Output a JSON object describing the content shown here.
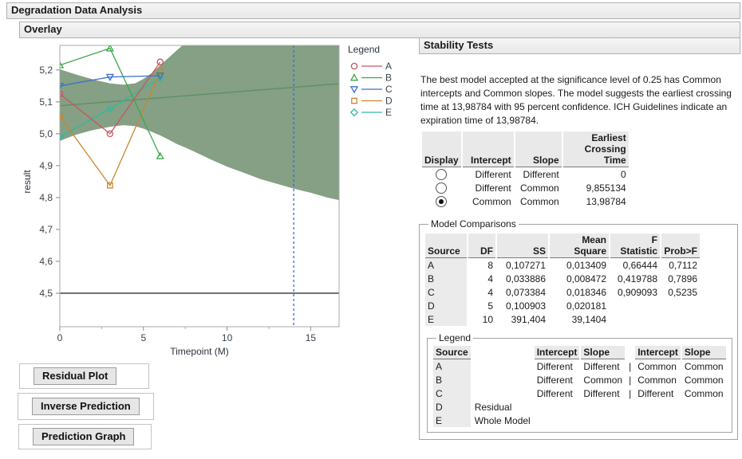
{
  "window": {
    "title": "Degradation Data Analysis",
    "section": "Overlay"
  },
  "buttons": [
    {
      "label": "Residual Plot"
    },
    {
      "label": "Inverse Prediction"
    },
    {
      "label": "Prediction Graph"
    }
  ],
  "stability": {
    "title": "Stability Tests",
    "description": "The best model accepted at the significance level of 0.25 has Common intercepts and Common slopes. The model suggests the earliest crossing time at 13,98784 with 95 percent confidence. ICH Guidelines indicate an expiration time of 13,98784.",
    "display_table": {
      "headers": [
        "Display",
        "Intercept",
        "Slope",
        "Earliest\nCrossing Time"
      ],
      "rows": [
        {
          "selected": false,
          "intercept": "Different",
          "slope": "Different",
          "earliest_crossing_time": "0"
        },
        {
          "selected": false,
          "intercept": "Different",
          "slope": "Common",
          "earliest_crossing_time": "9,855134"
        },
        {
          "selected": true,
          "intercept": "Common",
          "slope": "Common",
          "earliest_crossing_time": "13,98784"
        }
      ]
    },
    "model_comparisons": {
      "title": "Model Comparisons",
      "headers": [
        "Source",
        "DF",
        "SS",
        "Mean Square",
        "F Statistic",
        "Prob>F"
      ],
      "rows": [
        [
          "A",
          "8",
          "0,107271",
          "0,013409",
          "0,66444",
          "0,7112"
        ],
        [
          "B",
          "4",
          "0,033886",
          "0,008472",
          "0,419788",
          "0,7896"
        ],
        [
          "C",
          "4",
          "0,073384",
          "0,018346",
          "0,909093",
          "0,5235"
        ],
        [
          "D",
          "5",
          "0,100903",
          "0,020181",
          "",
          ""
        ],
        [
          "E",
          "10",
          "391,404",
          "39,1404",
          "",
          ""
        ]
      ]
    },
    "legend_box": {
      "title": "Legend",
      "headers": [
        "Source",
        "",
        "Intercept",
        "Slope",
        "",
        "Intercept",
        "Slope"
      ],
      "rows": [
        [
          "A",
          "",
          "Different",
          "Different",
          "|",
          "Common",
          "Common"
        ],
        [
          "B",
          "",
          "Different",
          "Common",
          "|",
          "Common",
          "Common"
        ],
        [
          "C",
          "",
          "Different",
          "Different",
          "|",
          "Different",
          "Common"
        ],
        [
          "D",
          "Residual",
          "",
          "",
          "",
          "",
          ""
        ],
        [
          "E",
          "Whole Model",
          "",
          "",
          "",
          "",
          ""
        ]
      ]
    }
  },
  "chart_data": {
    "type": "line",
    "title": "",
    "xlabel": "Timepoint (M)",
    "ylabel": "result",
    "xlim": [
      0,
      16.7
    ],
    "ylim": [
      4.395,
      5.277
    ],
    "xticks": [
      0,
      5,
      10,
      15
    ],
    "xminor": [
      2.5,
      7.5,
      12.5
    ],
    "yticks": [
      4.5,
      4.6,
      4.7,
      4.8,
      4.9,
      5.0,
      5.1,
      5.2
    ],
    "decimal": ",",
    "grid": false,
    "legend_title": "Legend",
    "legend_position": "right",
    "series": [
      {
        "name": "A",
        "color": "#cb5360",
        "marker": "circle",
        "x": [
          0,
          3,
          6
        ],
        "y": [
          5.125,
          5.0,
          5.225
        ]
      },
      {
        "name": "B",
        "color": "#3fa64b",
        "marker": "triangle-up",
        "x": [
          0,
          3,
          6
        ],
        "y": [
          5.215,
          5.268,
          4.93
        ]
      },
      {
        "name": "C",
        "color": "#3c6fc8",
        "marker": "triangle-down",
        "x": [
          0,
          3,
          6
        ],
        "y": [
          5.15,
          5.178,
          5.182
        ]
      },
      {
        "name": "D",
        "color": "#c8862f",
        "marker": "square",
        "x": [
          0,
          3,
          6
        ],
        "y": [
          5.055,
          4.838,
          5.195
        ]
      },
      {
        "name": "E",
        "color": "#2db9a2",
        "marker": "diamond",
        "x": [
          0,
          3,
          6
        ],
        "y": [
          4.99,
          5.078,
          5.175
        ]
      }
    ],
    "fit_line": {
      "color": "#5f8f63",
      "x": [
        0,
        16.7
      ],
      "y": [
        5.088,
        5.157
      ]
    },
    "confidence_band": {
      "color": "#85a084",
      "upper": [
        [
          0,
          5.202
        ],
        [
          1,
          5.185
        ],
        [
          2,
          5.17
        ],
        [
          3,
          5.158
        ],
        [
          3.8,
          5.154
        ],
        [
          4.5,
          5.158
        ],
        [
          5,
          5.172
        ],
        [
          5.5,
          5.19
        ],
        [
          6,
          5.215
        ],
        [
          6.5,
          5.238
        ],
        [
          7,
          5.262
        ],
        [
          7.5,
          5.285
        ],
        [
          8,
          5.31
        ],
        [
          9,
          5.35
        ],
        [
          10,
          5.385
        ],
        [
          12,
          5.45
        ],
        [
          14,
          5.51
        ],
        [
          16.7,
          5.6
        ]
      ],
      "lower": [
        [
          0,
          4.978
        ],
        [
          1,
          4.998
        ],
        [
          2,
          5.012
        ],
        [
          3,
          5.022
        ],
        [
          3.8,
          5.027
        ],
        [
          4.5,
          5.024
        ],
        [
          5,
          5.016
        ],
        [
          5.5,
          5.006
        ],
        [
          6,
          4.995
        ],
        [
          6.5,
          4.982
        ],
        [
          7,
          4.968
        ],
        [
          7.5,
          4.957
        ],
        [
          8,
          4.945
        ],
        [
          9,
          4.92
        ],
        [
          10,
          4.897
        ],
        [
          11,
          4.878
        ],
        [
          12,
          4.858
        ],
        [
          13,
          4.843
        ],
        [
          14,
          4.828
        ],
        [
          15,
          4.815
        ],
        [
          16,
          4.8
        ],
        [
          16.7,
          4.792
        ]
      ]
    },
    "spec_line": {
      "y": 4.5,
      "color": "#000000"
    },
    "crossing_line": {
      "x": 13.98784,
      "color": "#2e6de4",
      "style": "dashed"
    }
  }
}
